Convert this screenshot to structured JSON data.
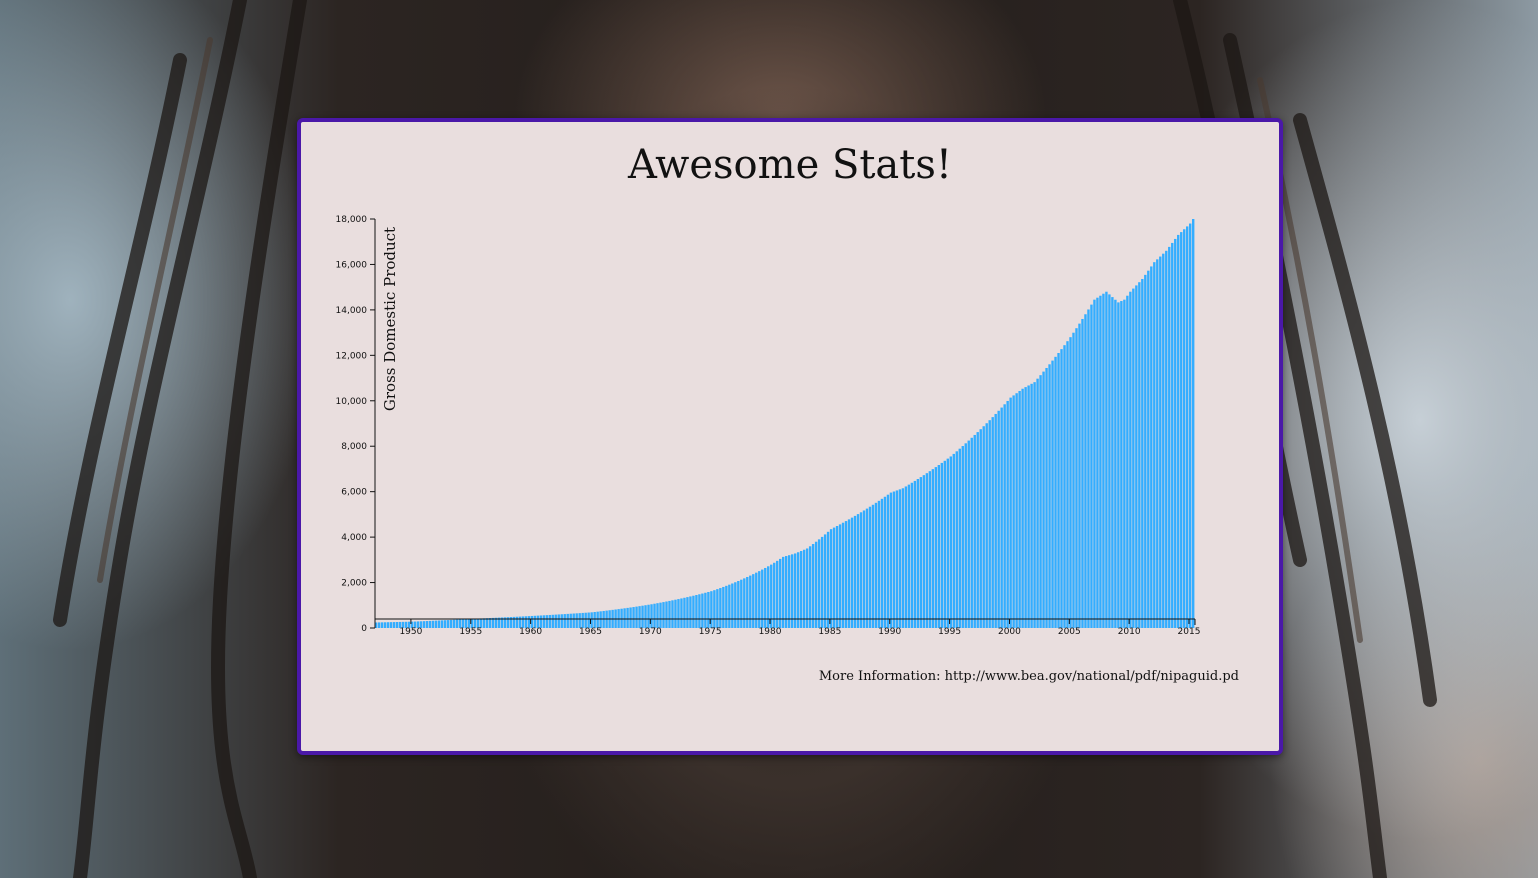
{
  "page": {
    "title": "Awesome Stats!",
    "more_info": "More Information: http://www.bea.gov/national/pdf/nipaguid.pd"
  },
  "colors": {
    "bar": "#33adff",
    "card_background": "#e9dede",
    "card_border": "#4a18a8"
  },
  "chart_data": {
    "type": "bar",
    "title": "",
    "xlabel": "",
    "ylabel": "Gross Domestic Product",
    "xlim": [
      1947,
      2015.5
    ],
    "ylim": [
      0,
      18000
    ],
    "x_ticks": [
      1950,
      1955,
      1960,
      1965,
      1970,
      1975,
      1980,
      1985,
      1990,
      1995,
      2000,
      2005,
      2010,
      2015
    ],
    "y_ticks": [
      0,
      2000,
      4000,
      6000,
      8000,
      10000,
      12000,
      14000,
      16000,
      18000
    ],
    "y_tick_labels": [
      "0",
      "2,000",
      "4,000",
      "6,000",
      "8,000",
      "10,000",
      "12,000",
      "14,000",
      "16,000",
      "18,000"
    ],
    "grid": false,
    "frequency": "quarterly",
    "series": [
      {
        "x": [
          1947,
          1950,
          1955,
          1960,
          1965,
          1970,
          1975,
          1980,
          1981,
          1982,
          1983,
          1985,
          1990,
          1991,
          1995,
          2000,
          2001,
          2002,
          2005,
          2007,
          2008,
          2009,
          2009.5,
          2010,
          2011,
          2012,
          2013,
          2014,
          2015,
          2015.25
        ],
        "values": [
          243,
          280,
          405,
          530,
          690,
          1045,
          1620,
          2790,
          3130,
          3280,
          3500,
          4350,
          5960,
          6150,
          7550,
          10140,
          10530,
          10820,
          12800,
          14450,
          14800,
          14330,
          14450,
          14800,
          15360,
          16100,
          16600,
          17300,
          17800,
          18000
        ]
      }
    ]
  }
}
